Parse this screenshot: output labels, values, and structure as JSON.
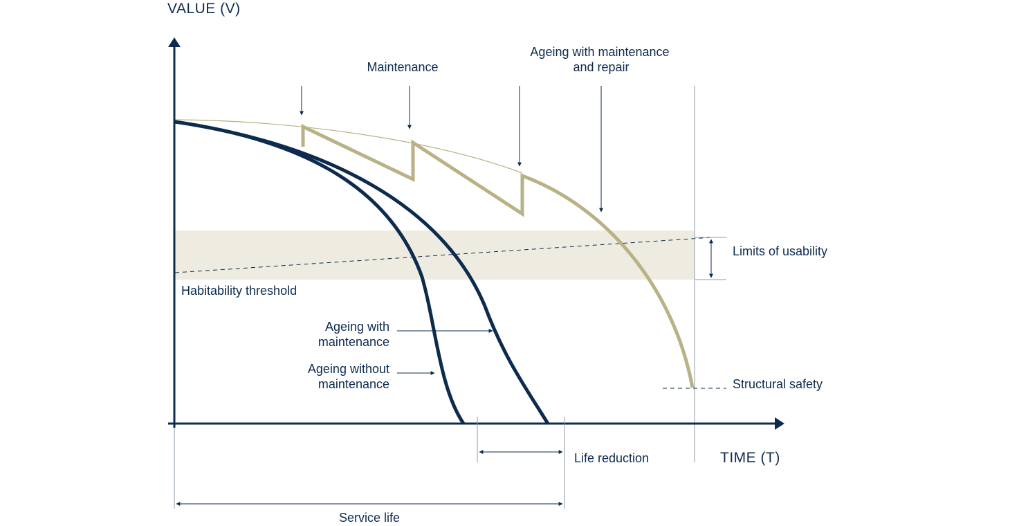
{
  "colors": {
    "navy": "#0d2b4e",
    "gold": "#b9b286",
    "band": "#eeece1",
    "thin": "#8d9aa8"
  },
  "axes": {
    "y_label": "VALUE (V)",
    "x_label": "TIME (T)"
  },
  "labels": {
    "maintenance": "Maintenance",
    "ageing_repair_line1": "Ageing with maintenance",
    "ageing_repair_line2": "and repair",
    "limits_usability": "Limits of usability",
    "habitability": "Habitability threshold",
    "ageing_with_line1": "Ageing with",
    "ageing_with_line2": "maintenance",
    "ageing_without_line1": "Ageing without",
    "ageing_without_line2": "maintenance",
    "structural_safety": "Structural safety",
    "life_reduction": "Life reduction",
    "service_life": "Service life"
  }
}
